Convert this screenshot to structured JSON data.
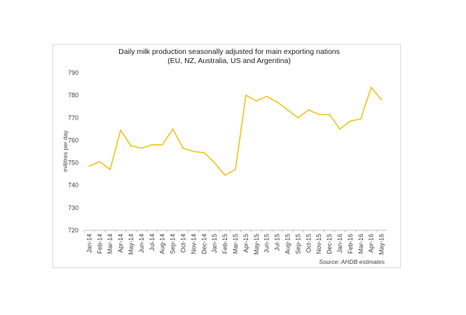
{
  "chart_data": {
    "type": "line",
    "title": "Daily milk production seasonally adjusted for main exporting nations",
    "subtitle": "(EU, NZ, Australia, US and Argentina)",
    "ylabel": "millitres per day",
    "source": "Source:  AHDB estimates",
    "ylim": [
      720,
      790
    ],
    "yticks": [
      720,
      730,
      740,
      750,
      760,
      770,
      780,
      790
    ],
    "grid": false,
    "line_color": "#f2c318",
    "categories": [
      "Jan-14",
      "Feb-14",
      "Mar-14",
      "Apr-14",
      "May-14",
      "Jun-14",
      "Jul-14",
      "Aug-14",
      "Sep-14",
      "Oct-14",
      "Nov-14",
      "Dec-14",
      "Jan-15",
      "Feb-15",
      "Mar-15",
      "Apr-15",
      "May-15",
      "Jun-15",
      "Jul-15",
      "Aug-15",
      "Sep-15",
      "Oct-15",
      "Nov-15",
      "Dec-15",
      "Jan-16",
      "Feb-16",
      "Mar-16",
      "Apr-16",
      "May-16"
    ],
    "values": [
      748.5,
      750.5,
      747,
      764.5,
      757.5,
      756.5,
      758,
      758,
      765,
      756.5,
      755,
      754.5,
      750,
      744.5,
      747,
      780,
      777.5,
      779.5,
      777,
      773.5,
      770,
      773.5,
      771.5,
      771.5,
      765,
      768.5,
      769.5,
      783.5,
      778
    ]
  }
}
